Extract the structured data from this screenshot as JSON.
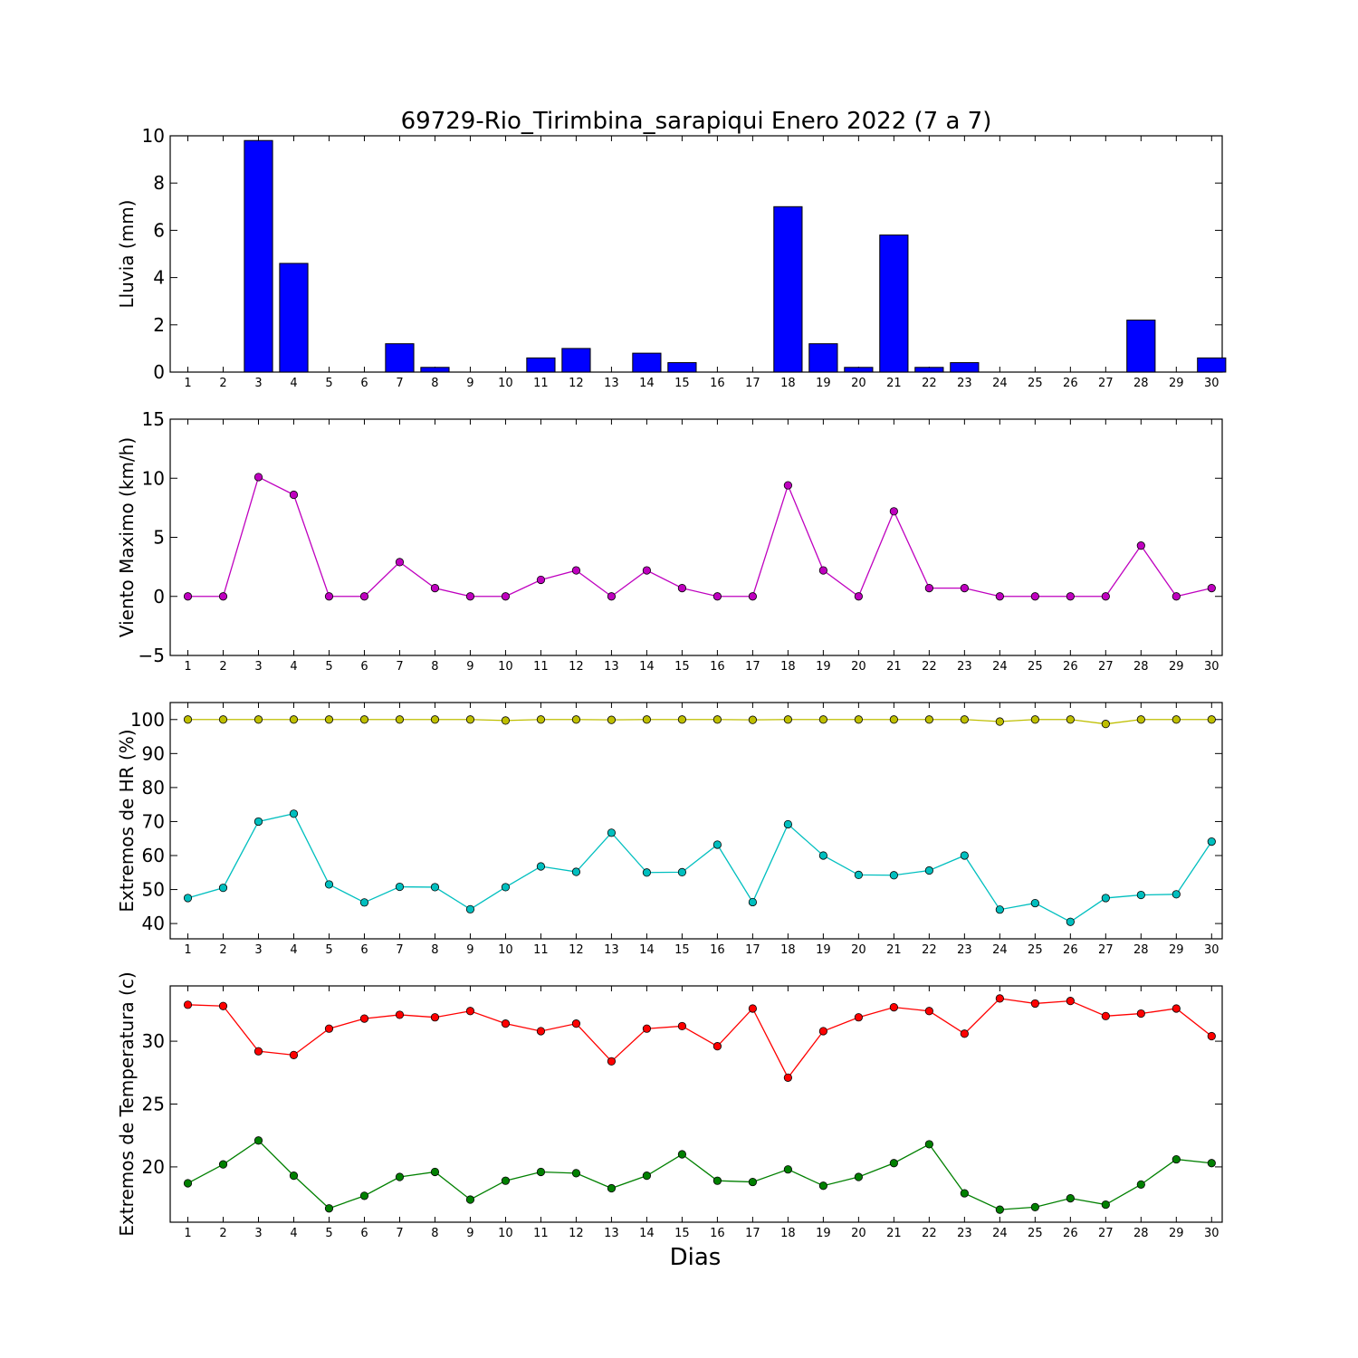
{
  "chart_data": [
    {
      "type": "bar",
      "title": "69729-Rio_Tirimbina_sarapiqui Enero 2022  (7 a 7)",
      "ylabel": "Lluvia (mm)",
      "xlabel": "",
      "categories": [
        "1",
        "2",
        "3",
        "4",
        "5",
        "6",
        "7",
        "8",
        "9",
        "10",
        "11",
        "12",
        "13",
        "14",
        "15",
        "16",
        "17",
        "18",
        "19",
        "20",
        "21",
        "22",
        "23",
        "24",
        "25",
        "26",
        "27",
        "28",
        "29",
        "30"
      ],
      "values": [
        0,
        0,
        9.8,
        4.6,
        0,
        0,
        1.2,
        0.2,
        0,
        0,
        0.6,
        1.0,
        0,
        0.8,
        0.4,
        0,
        0,
        7.0,
        1.2,
        0.2,
        5.8,
        0.2,
        0.4,
        0,
        0,
        0,
        0,
        2.2,
        0,
        0.6
      ],
      "ylim": [
        0,
        10
      ],
      "yticks": [
        0,
        2,
        4,
        6,
        8,
        10
      ],
      "colors": {
        "bar": "#0000ff",
        "edge": "#000000"
      }
    },
    {
      "type": "line",
      "ylabel": "Viento Maximo (km/h)",
      "xlabel": "",
      "x": [
        "1",
        "2",
        "3",
        "4",
        "5",
        "6",
        "7",
        "8",
        "9",
        "10",
        "11",
        "12",
        "13",
        "14",
        "15",
        "16",
        "17",
        "18",
        "19",
        "20",
        "21",
        "22",
        "23",
        "24",
        "25",
        "26",
        "27",
        "28",
        "29",
        "30"
      ],
      "series": [
        {
          "values": [
            0,
            0,
            10.1,
            8.6,
            0,
            0,
            2.9,
            0.7,
            0,
            0,
            1.4,
            2.2,
            0,
            2.2,
            0.7,
            0,
            0,
            9.4,
            2.2,
            0,
            7.2,
            0.7,
            0.7,
            0,
            0,
            0,
            0,
            4.3,
            0,
            0.7
          ],
          "color": "#bf00bf"
        }
      ],
      "ylim": [
        -5,
        15
      ],
      "yticks": [
        -5,
        0,
        5,
        10,
        15
      ]
    },
    {
      "type": "line",
      "ylabel": "Extremos de HR (%)",
      "xlabel": "",
      "x": [
        "1",
        "2",
        "3",
        "4",
        "5",
        "6",
        "7",
        "8",
        "9",
        "10",
        "11",
        "12",
        "13",
        "14",
        "15",
        "16",
        "17",
        "18",
        "19",
        "20",
        "21",
        "22",
        "23",
        "24",
        "25",
        "26",
        "27",
        "28",
        "29",
        "30"
      ],
      "series": [
        {
          "values": [
            100,
            100,
            100,
            100,
            100,
            100,
            100,
            100,
            100,
            99.7,
            100,
            100,
            99.9,
            100,
            100,
            100,
            99.9,
            100,
            100,
            100,
            100,
            100,
            100,
            99.4,
            100,
            100,
            98.7,
            100,
            100,
            100
          ],
          "color": "#bfbf00"
        },
        {
          "values": [
            47.5,
            50.5,
            70,
            72.3,
            51.5,
            46.2,
            50.8,
            50.7,
            44.2,
            50.7,
            56.8,
            55.2,
            66.7,
            55,
            55.1,
            63.2,
            46.3,
            69.2,
            60,
            54.3,
            54.2,
            55.6,
            60,
            44.1,
            46,
            40.5,
            47.5,
            48.4,
            48.6,
            64.1
          ],
          "color": "#00bfbf"
        }
      ],
      "ylim": [
        35.5,
        105
      ],
      "yticks": [
        40,
        50,
        60,
        70,
        80,
        90,
        100
      ]
    },
    {
      "type": "line",
      "ylabel": "Extremos de Temperatura (c)",
      "xlabel": "Dias",
      "x": [
        "1",
        "2",
        "3",
        "4",
        "5",
        "6",
        "7",
        "8",
        "9",
        "10",
        "11",
        "12",
        "13",
        "14",
        "15",
        "16",
        "17",
        "18",
        "19",
        "20",
        "21",
        "22",
        "23",
        "24",
        "25",
        "26",
        "27",
        "28",
        "29",
        "30"
      ],
      "series": [
        {
          "values": [
            32.9,
            32.8,
            29.2,
            28.9,
            31,
            31.8,
            32.1,
            31.9,
            32.4,
            31.4,
            30.8,
            31.4,
            28.4,
            31,
            31.2,
            29.6,
            32.6,
            27.1,
            30.8,
            31.9,
            32.7,
            32.4,
            30.6,
            33.4,
            33,
            33.2,
            32,
            32.2,
            32.6,
            30.4
          ],
          "color": "#ff0000"
        },
        {
          "values": [
            18.7,
            20.2,
            22.1,
            19.3,
            16.7,
            17.7,
            19.2,
            19.6,
            17.4,
            18.9,
            19.6,
            19.5,
            18.3,
            19.3,
            21,
            18.9,
            18.8,
            19.8,
            18.5,
            19.2,
            20.3,
            21.8,
            17.9,
            16.6,
            16.8,
            17.5,
            17,
            18.6,
            20.6,
            20.3
          ],
          "color": "#008000"
        }
      ],
      "ylim": [
        15.6,
        34.4
      ],
      "yticks": [
        20,
        25,
        30
      ]
    }
  ]
}
